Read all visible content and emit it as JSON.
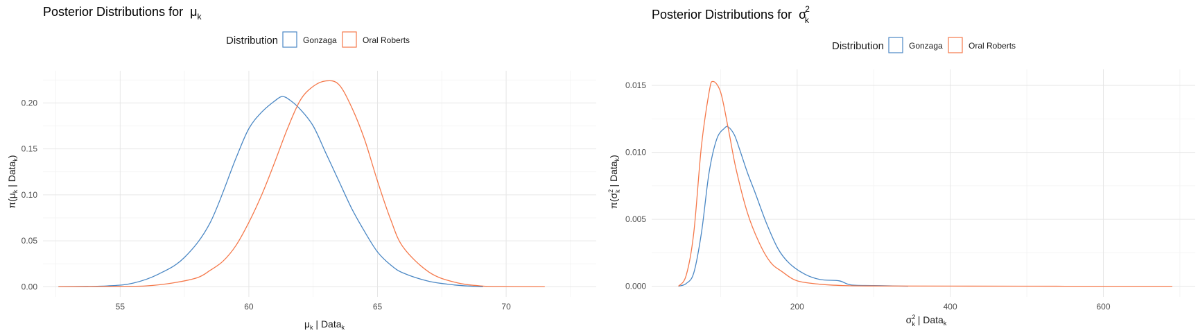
{
  "colors": {
    "gonzaga": "#4a87c4",
    "oral_roberts": "#f5784a"
  },
  "legend": {
    "title": "Distribution",
    "entries": [
      "Gonzaga",
      "Oral Roberts"
    ]
  },
  "chart_data": [
    {
      "type": "line",
      "title_prefix": "Posterior Distributions for",
      "title_symbol": "μ",
      "title_sub": "k",
      "xlabel_symbol": "μ",
      "xlabel_sub": "k",
      "xlabel_rest": " | Data",
      "xlabel_rest_sub": "k",
      "ylabel_pre": "π(",
      "ylabel_symbol": "μ",
      "ylabel_sub": "k",
      "ylabel_rest": " | Data",
      "ylabel_rest_sub": "k",
      "ylabel_post": ")",
      "xlim": [
        52,
        73.5
      ],
      "ylim": [
        -0.011,
        0.235
      ],
      "x_ticks": [
        55,
        60,
        65,
        70
      ],
      "x_tick_labels": [
        "55",
        "60",
        "65",
        "70"
      ],
      "y_ticks": [
        0.0,
        0.05,
        0.1,
        0.15,
        0.2
      ],
      "y_tick_labels": [
        "0.00",
        "0.05",
        "0.10",
        "0.15",
        "0.20"
      ],
      "series": [
        {
          "name": "Gonzaga",
          "x": [
            52.6,
            54.5,
            55.5,
            56.5,
            57.5,
            58.5,
            59.5,
            60.0,
            60.5,
            61.0,
            61.3,
            61.6,
            62.0,
            62.5,
            63.0,
            63.5,
            64.0,
            64.5,
            65.0,
            65.5,
            66.0,
            67.0,
            68.0,
            69.1
          ],
          "y": [
            0,
            0.001,
            0.004,
            0.014,
            0.032,
            0.07,
            0.14,
            0.172,
            0.19,
            0.202,
            0.207,
            0.203,
            0.193,
            0.175,
            0.145,
            0.115,
            0.085,
            0.06,
            0.038,
            0.024,
            0.015,
            0.006,
            0.002,
            0
          ]
        },
        {
          "name": "Oral Roberts",
          "x": [
            52.6,
            55.0,
            56.0,
            57.0,
            58.0,
            58.5,
            59.0,
            59.5,
            60.0,
            60.5,
            61.0,
            61.5,
            62.0,
            62.5,
            63.0,
            63.5,
            64.0,
            64.5,
            65.0,
            65.5,
            66.0,
            67.0,
            68.0,
            69.0,
            70.0,
            71.5
          ],
          "y": [
            0,
            0.0005,
            0.001,
            0.004,
            0.01,
            0.018,
            0.028,
            0.045,
            0.07,
            0.1,
            0.135,
            0.172,
            0.203,
            0.218,
            0.224,
            0.22,
            0.195,
            0.16,
            0.115,
            0.074,
            0.043,
            0.016,
            0.005,
            0.001,
            0.0003,
            0
          ]
        }
      ]
    },
    {
      "type": "line",
      "title_prefix": "Posterior Distributions for",
      "title_symbol": "σ",
      "title_sub": "k",
      "title_sup": "2",
      "xlabel_symbol": "σ",
      "xlabel_sub": "k",
      "xlabel_sup": "2",
      "xlabel_rest": " | Data",
      "xlabel_rest_sub": "k",
      "ylabel_pre": "π(",
      "ylabel_symbol": "σ",
      "ylabel_sub": "k",
      "ylabel_sup": "2",
      "ylabel_rest": " | Data",
      "ylabel_rest_sub": "k",
      "ylabel_post": ")",
      "xlim": [
        10,
        720
      ],
      "ylim": [
        -0.0008,
        0.0162
      ],
      "x_ticks": [
        200,
        400,
        600
      ],
      "x_tick_labels": [
        "200",
        "400",
        "600"
      ],
      "y_ticks": [
        0.0,
        0.005,
        0.01,
        0.015
      ],
      "y_tick_labels": [
        "0.000",
        "0.005",
        "0.010",
        "0.015"
      ],
      "series": [
        {
          "name": "Gonzaga",
          "x": [
            45,
            55,
            65,
            75,
            85,
            95,
            105,
            110,
            118,
            125,
            135,
            145,
            160,
            175,
            190,
            210,
            230,
            255,
            270,
            300,
            345
          ],
          "y": [
            0,
            0.0002,
            0.001,
            0.004,
            0.0085,
            0.011,
            0.0118,
            0.0119,
            0.0113,
            0.0102,
            0.0085,
            0.007,
            0.0047,
            0.0028,
            0.0017,
            0.0009,
            0.0005,
            0.0004,
            0.0001,
            5e-05,
            0
          ]
        },
        {
          "name": "Oral Roberts",
          "x": [
            45,
            55,
            65,
            75,
            85,
            90,
            100,
            110,
            120,
            135,
            150,
            165,
            180,
            200,
            230,
            260,
            300,
            400,
            550,
            690
          ],
          "y": [
            0,
            0.0008,
            0.004,
            0.0105,
            0.0145,
            0.0153,
            0.0145,
            0.0118,
            0.0088,
            0.0055,
            0.0033,
            0.0018,
            0.0011,
            0.0004,
            0.00015,
            5e-05,
            2e-05,
            1e-05,
            0,
            0
          ]
        }
      ]
    }
  ]
}
